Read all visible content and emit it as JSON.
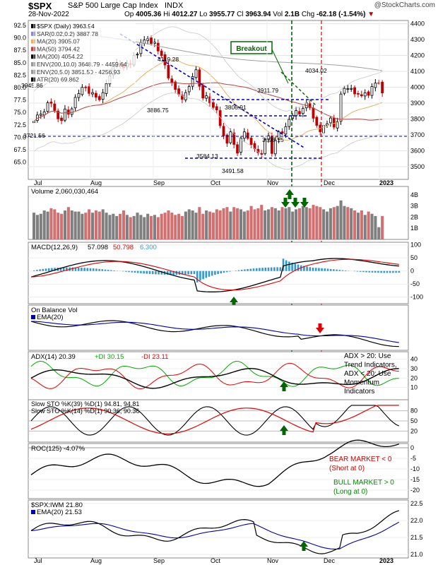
{
  "header": {
    "symbol": "$SPX",
    "name": "S&P 500 Large Cap Index",
    "exchange": "INDX",
    "copyright": "@StockCharts.com",
    "date": "28-Nov-2022",
    "open_label": "Op",
    "open": "4005.36",
    "high_label": "Hi",
    "high": "4012.27",
    "low_label": "Lo",
    "low": "3955.77",
    "close_label": "Cl",
    "close": "3963.94",
    "vol_label": "Vol",
    "vol": "2.1B",
    "chg_label": "Chg",
    "chg": "-62.18 (-1.54%)"
  },
  "colors": {
    "up": "#000000",
    "down": "#c00000",
    "volume_up": "#7f7f7f",
    "volume_down": "#d07070",
    "ma20": "#e8b060",
    "ma50": "#c04040",
    "sar": "#8888cc",
    "env": "#a0a0a0",
    "trendline": "#0000cc",
    "green_marker": "#006600",
    "red_marker": "#e00000",
    "macd_line": "#000000",
    "signal_line": "#e00000",
    "histogram": "#3399cc",
    "pdi": "#00aa00",
    "mdi": "#e00000",
    "ema": "#0000aa"
  },
  "chart_data": [
    {
      "type": "candlestick",
      "panel": "price",
      "title": "$SPX (Daily) 3963.94",
      "y_ticks": [
        "92.5",
        "90.0",
        "87.5",
        "85.0",
        "82.5",
        "80.0",
        "77.5",
        "75.0",
        "72.5",
        "70.0",
        "67.5",
        "65.0"
      ],
      "y_ticks_right": [
        "4400",
        "4300",
        "4200",
        "4100",
        "4000",
        "3900",
        "3800",
        "3700",
        "3600",
        "3500"
      ],
      "ylim": [
        3420,
        4420
      ],
      "x_ticks": [
        "Jul",
        "Aug",
        "Sep",
        "Oct",
        "Nov",
        "Dec",
        "2023"
      ],
      "legend": [
        "$SPX (Daily) 3963.94",
        "SAR(0.02,0.2) 3887.78",
        "MA(20) 3905.07",
        "MA(50) 3794.42",
        "MA(200) 4054.22",
        "ENV(200,10.0) 3648.79 - 4459.64",
        "ENV(20,5.0) 3851.50 - 4256.93",
        "ATR(20) 69.862"
      ],
      "annotations": [
        "Breakout",
        "4119.28",
        "3886.75",
        "3911.79",
        "4034.02",
        "3806.91",
        "3721.56",
        "3698.15",
        "3584.13",
        "3491.58",
        "3945.86"
      ],
      "close_series": [
        3785,
        3825,
        3831,
        3845,
        3902,
        3899,
        3854,
        3801,
        3790,
        3863,
        3830,
        3864,
        3936,
        3960,
        3999,
        3998,
        3961,
        3966,
        3937,
        3921,
        3966,
        4023,
        4072,
        4130,
        4155,
        4140,
        4122,
        4151,
        4145,
        4200,
        4208,
        4280,
        4297,
        4305,
        4275,
        4283,
        4228,
        4199,
        4140,
        4058,
        4030,
        3986,
        3955,
        3924,
        3966,
        4004,
        4067,
        4110,
        4006,
        3932,
        3946,
        3901,
        3873,
        3857,
        3758,
        3694,
        3648,
        3719,
        3640,
        3585,
        3679,
        3719,
        3678,
        3640,
        3612,
        3588,
        3577,
        3670,
        3695,
        3583,
        3666,
        3719,
        3711,
        3752,
        3798,
        3822,
        3853,
        3831,
        3866,
        3901,
        3872,
        3805,
        3760,
        3719,
        3759,
        3770,
        3806,
        3749,
        3783,
        3957,
        3993,
        3991,
        3992,
        3958,
        3959,
        3946,
        3965,
        3949,
        4004,
        4026,
        4027,
        3964
      ],
      "first_close": 3785,
      "last_close": 3963.94
    },
    {
      "type": "bar",
      "panel": "volume",
      "title": "Volume 2,060,030,464",
      "y_ticks": [
        "4B",
        "3B",
        "2B",
        "1B"
      ],
      "ylim": [
        0,
        4.5
      ],
      "unit": "billions",
      "values": [
        2.4,
        2.2,
        2.3,
        2.6,
        2.5,
        2.8,
        2.7,
        2.4,
        2.3,
        2.6,
        2.9,
        2.6,
        2.5,
        2.5,
        2.3,
        2.4,
        2.7,
        2.4,
        2.6,
        2.5,
        2.7,
        2.4,
        2.2,
        2.3,
        2.1,
        2.3,
        2.6,
        2.2,
        2.0,
        2.1,
        2.4,
        2.2,
        2.0,
        2.3,
        2.1,
        2.2,
        2.0,
        2.3,
        2.4,
        2.6,
        2.4,
        2.2,
        2.3,
        2.1,
        2.5,
        2.7,
        2.6,
        2.4,
        2.9,
        2.3,
        2.6,
        2.5,
        2.4,
        2.7,
        2.6,
        2.8,
        2.9,
        2.5,
        2.9,
        2.8,
        2.7,
        2.5,
        2.6,
        3.0,
        2.7,
        2.8,
        3.1,
        2.6,
        2.7,
        2.9,
        2.8,
        2.6,
        2.9,
        2.8,
        2.9,
        2.5,
        2.7,
        2.8,
        3.0,
        2.9,
        2.8,
        3.1,
        3.0,
        2.9,
        2.7,
        2.5,
        2.8,
        2.9,
        3.0,
        3.5,
        3.0,
        2.9,
        2.8,
        2.6,
        2.4,
        2.6,
        2.2,
        2.5,
        2.3,
        2.1,
        1.1,
        2.1
      ]
    },
    {
      "type": "line",
      "panel": "macd",
      "title": "MACD(12,26,9) 57.098, 50.798, 6.300",
      "legend": [
        "MACD(12,26,9)",
        "57.098",
        "50.798",
        "6.300"
      ],
      "y_ticks": [
        "100",
        "50",
        "0",
        "-50",
        "-100"
      ],
      "ylim": [
        -125,
        110
      ]
    },
    {
      "type": "line",
      "panel": "obv",
      "title": "On Balance Volume",
      "legend": [
        "On Balance Vol",
        "EMA(20)"
      ]
    },
    {
      "type": "line",
      "panel": "adx",
      "title": "ADX(14) 20.39 +DI 30.15 -DI 23.11",
      "legend": [
        "ADX(14) 20.39",
        "+DI 30.15",
        "-DI 23.11"
      ],
      "y_ticks": [
        "40",
        "30",
        "20",
        "10"
      ],
      "ylim": [
        0,
        45
      ],
      "note": [
        "ADX > 20: Use",
        "Trend Indicators,",
        "ADX < 20: Use",
        "Momentum",
        "Indicators"
      ]
    },
    {
      "type": "line",
      "panel": "sto",
      "legend": [
        "Slow STO %K(39) %D(1) 94.81, 94.81",
        "Slow STO %K(14) %D(1) 90.36, 90.36"
      ],
      "y_ticks": [
        "80",
        "50",
        "20"
      ],
      "ylim": [
        0,
        100
      ]
    },
    {
      "type": "line",
      "panel": "roc",
      "title": "ROC(125) -4.07%",
      "y_ticks": [
        "0",
        "-5",
        "-10",
        "-15",
        "-20"
      ],
      "ylim": [
        -24,
        2
      ],
      "notes": [
        "BEAR MARKET < 0",
        "(Short at 0)",
        "BULL MARKET > 0",
        "(Long at 0)"
      ]
    },
    {
      "type": "line",
      "panel": "ratio",
      "title": "$SPX:IWM 21.80",
      "legend": [
        "$SPX:IWM 21.80",
        "EMA(20) 21.53"
      ],
      "y_ticks": [
        "22.5",
        "22.0",
        "21.5",
        "21.0"
      ],
      "ylim": [
        20.9,
        22.6
      ]
    }
  ]
}
